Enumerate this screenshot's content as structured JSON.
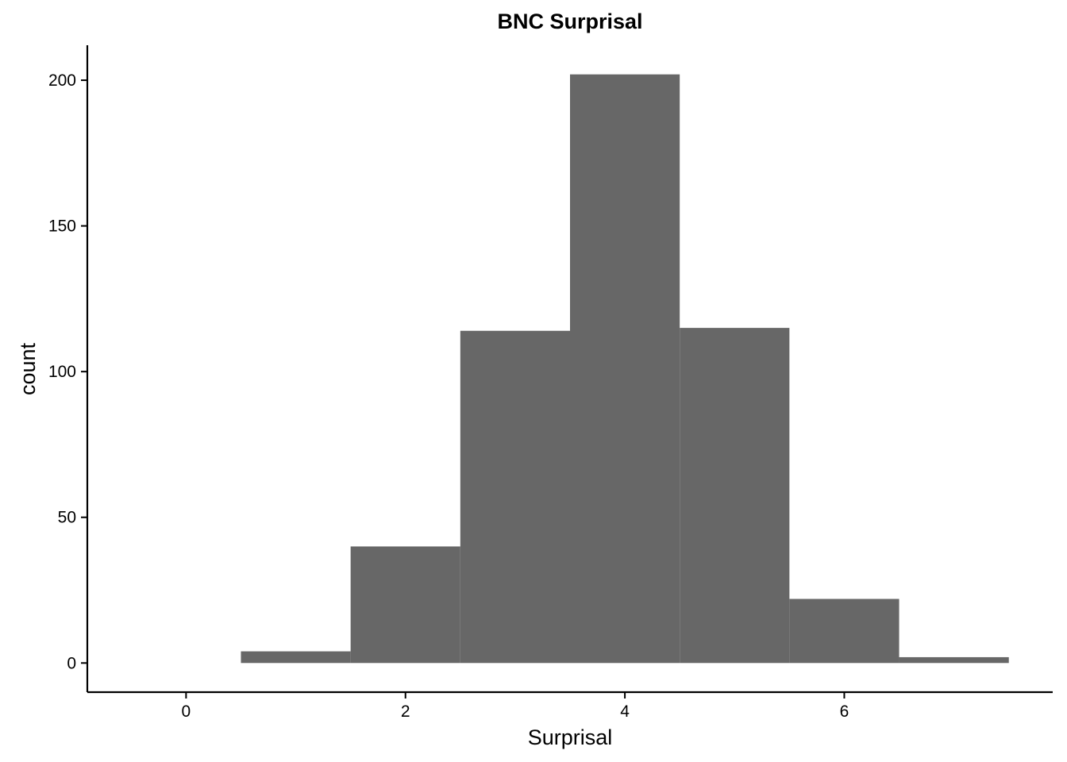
{
  "chart_data": {
    "type": "bar",
    "title": "BNC Surprisal",
    "xlabel": "Surprisal",
    "ylabel": "count",
    "bin_width": 1,
    "bins": [
      {
        "center": 1,
        "count": 4
      },
      {
        "center": 2,
        "count": 40
      },
      {
        "center": 3,
        "count": 114
      },
      {
        "center": 4,
        "count": 202
      },
      {
        "center": 5,
        "count": 115
      },
      {
        "center": 6,
        "count": 22
      },
      {
        "center": 7,
        "count": 2
      }
    ],
    "xlim": [
      -0.9,
      7.9
    ],
    "ylim": [
      -10,
      212
    ],
    "xticks": [
      0,
      2,
      4,
      6
    ],
    "yticks": [
      0,
      50,
      100,
      150,
      200
    ],
    "bar_color": "#676767",
    "grid": false,
    "legend": "none"
  }
}
